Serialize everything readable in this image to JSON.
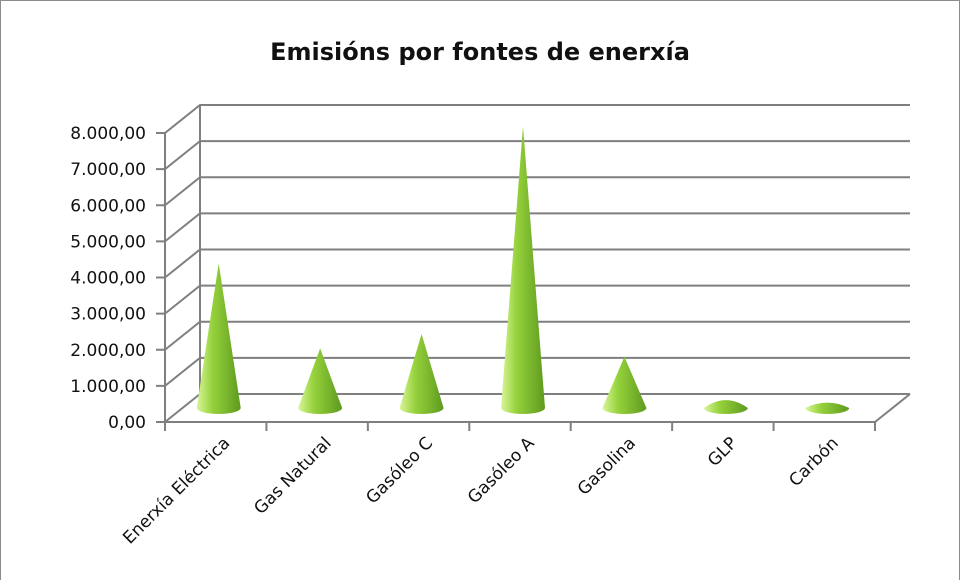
{
  "chart_data": {
    "type": "bar",
    "subtype": "3d-cone",
    "title": "Emisións por fontes de enerxía",
    "xlabel": "",
    "ylabel": "",
    "categories": [
      "Enerxía Eléctrica",
      "Gas Natural",
      "Gasóleo C",
      "Gasóleo A",
      "Gasolina",
      "GLP",
      "Carbón"
    ],
    "values": [
      4000,
      1650,
      2050,
      7800,
      1420,
      270,
      130
    ],
    "ylim": [
      0,
      8000
    ],
    "yticks": [
      "0,00",
      "1.000,00",
      "2.000,00",
      "3.000,00",
      "4.000,00",
      "5.000,00",
      "6.000,00",
      "7.000,00",
      "8.000,00"
    ],
    "grid": true,
    "legend": "none",
    "colors": {
      "cone_light": "#d9f59a",
      "cone_mid": "#96d23c",
      "cone_dark": "#5e9a1e",
      "grid": "#7f7f7f"
    }
  }
}
